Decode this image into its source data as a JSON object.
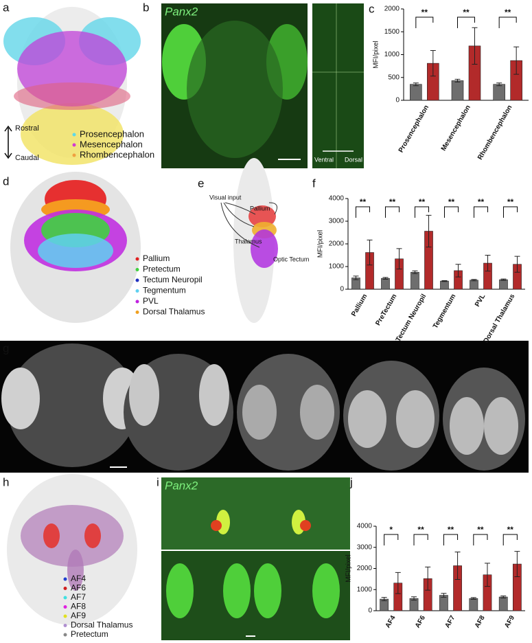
{
  "chart_data": [
    {
      "type": "bar",
      "panel": "c",
      "ylabel": "MFI/pixel",
      "categories": [
        "Prosencephalon",
        "Mesencephalon",
        "Rhombencephalon"
      ],
      "series": [
        {
          "color": "#6e6e6e",
          "values": [
            350,
            430,
            350
          ],
          "errors": [
            30,
            30,
            30
          ]
        },
        {
          "color": "#b22a2a",
          "values": [
            810,
            1190,
            870
          ],
          "errors": [
            280,
            400,
            300
          ]
        }
      ],
      "significance": [
        "**",
        "**",
        "**"
      ],
      "ylim": [
        0,
        2000
      ],
      "yticks": [
        0,
        500,
        1000,
        1500,
        2000
      ]
    },
    {
      "type": "bar",
      "panel": "f",
      "ylabel": "MFI/pixel",
      "categories": [
        "Pallium",
        "PreTectum",
        "Tectum Neuropil",
        "Tegmentum",
        "PVL",
        "Dorsal Thalamus"
      ],
      "series": [
        {
          "color": "#6e6e6e",
          "values": [
            500,
            480,
            750,
            360,
            400,
            420
          ],
          "errors": [
            80,
            40,
            60,
            20,
            30,
            30
          ]
        },
        {
          "color": "#b22a2a",
          "values": [
            1620,
            1340,
            2560,
            820,
            1150,
            1100
          ],
          "errors": [
            550,
            450,
            700,
            280,
            350,
            350
          ]
        }
      ],
      "significance": [
        "**",
        "**",
        "**",
        "**",
        "**",
        "**"
      ],
      "ylim": [
        0,
        4000
      ],
      "yticks": [
        0,
        1000,
        2000,
        3000,
        4000
      ]
    },
    {
      "type": "bar",
      "panel": "j",
      "ylabel": "MFI/pixel",
      "categories": [
        "AF4",
        "AF6",
        "AF7",
        "AF8",
        "AF9"
      ],
      "series": [
        {
          "color": "#6e6e6e",
          "values": [
            550,
            580,
            730,
            580,
            650
          ],
          "errors": [
            80,
            80,
            90,
            40,
            50
          ]
        },
        {
          "color": "#b22a2a",
          "values": [
            1310,
            1520,
            2130,
            1700,
            2210
          ],
          "errors": [
            500,
            550,
            650,
            550,
            600
          ]
        }
      ],
      "significance": [
        "*",
        "**",
        "**",
        "**",
        "**"
      ],
      "ylim": [
        0,
        4000
      ],
      "yticks": [
        0,
        1000,
        2000,
        3000,
        4000
      ]
    }
  ],
  "panels": {
    "letters": [
      "a",
      "b",
      "c",
      "d",
      "e",
      "f",
      "g",
      "h",
      "i",
      "j"
    ],
    "a": {
      "legend": [
        {
          "label": "Prosencephalon",
          "color": "#5fd8e8"
        },
        {
          "label": "Mesencephalon",
          "color": "#d23ad2"
        },
        {
          "label": "Rhombencephalon",
          "color": "#f0a040"
        }
      ],
      "rostral": "Rostral",
      "caudal": "Caudal"
    },
    "b": {
      "gene": "Panx2",
      "ventral": "Ventral",
      "dorsal": "Dorsal"
    },
    "d": {
      "legend": [
        {
          "label": "Pallium",
          "color": "#e02020"
        },
        {
          "label": "Pretectum",
          "color": "#40d040"
        },
        {
          "label": "Tectum Neuropil",
          "color": "#2030c0"
        },
        {
          "label": "Tegmentum",
          "color": "#60d0f0"
        },
        {
          "label": "PVL",
          "color": "#c020e0"
        },
        {
          "label": "Dorsal Thalamus",
          "color": "#f0a020"
        }
      ]
    },
    "e": {
      "visual": "Visual input",
      "pallium": "Pallium",
      "thalamus": "Thalamus",
      "tectum": "Optic Tectum"
    },
    "h": {
      "legend": [
        {
          "label": "AF4",
          "color": "#2040d0"
        },
        {
          "label": "AF6",
          "color": "#d02020"
        },
        {
          "label": "AF7",
          "color": "#40e0e0"
        },
        {
          "label": "AF8",
          "color": "#e020e0"
        },
        {
          "label": "AF9",
          "color": "#e0e020"
        },
        {
          "label": "Dorsal Thalamus",
          "color": "#b090d0"
        },
        {
          "label": "Pretectum",
          "color": "#888888"
        }
      ]
    },
    "i": {
      "gene": "Panx2"
    }
  }
}
